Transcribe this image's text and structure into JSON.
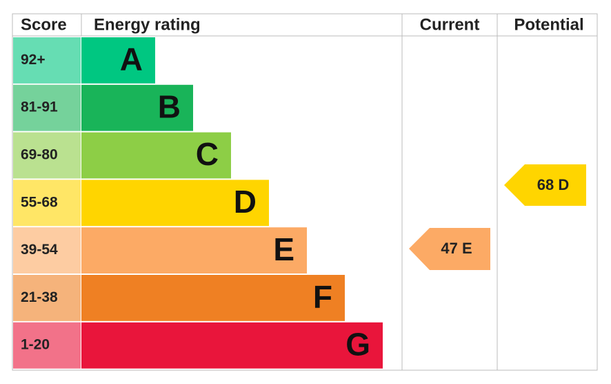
{
  "header": {
    "score": "Score",
    "rating": "Energy rating",
    "current": "Current",
    "potential": "Potential"
  },
  "bands": [
    {
      "score": "92+",
      "letter": "A",
      "color": "#00c781"
    },
    {
      "score": "81-91",
      "letter": "B",
      "color": "#19b459"
    },
    {
      "score": "69-80",
      "letter": "C",
      "color": "#8dce46"
    },
    {
      "score": "55-68",
      "letter": "D",
      "color": "#ffd500"
    },
    {
      "score": "39-54",
      "letter": "E",
      "color": "#fcaa65"
    },
    {
      "score": "21-38",
      "letter": "F",
      "color": "#ef8023"
    },
    {
      "score": "1-20",
      "letter": "G",
      "color": "#e9153b"
    }
  ],
  "current": {
    "label": "47 E",
    "color": "#fcaa65"
  },
  "potential": {
    "label": "68 D",
    "color": "#ffd500"
  }
}
